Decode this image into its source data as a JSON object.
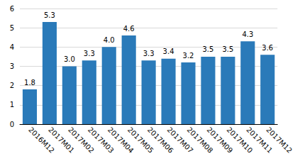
{
  "chart_data": {
    "type": "bar",
    "categories": [
      "2016M12",
      "2017M01",
      "2017M02",
      "2017M03",
      "2017M04",
      "2017M05",
      "2017M06",
      "2017M07",
      "2017M08",
      "2017M09",
      "2017M10",
      "2017M11",
      "2017M12"
    ],
    "values": [
      1.8,
      5.3,
      3.0,
      3.3,
      4.0,
      4.6,
      3.3,
      3.4,
      3.2,
      3.5,
      3.5,
      4.3,
      3.6
    ],
    "value_labels": [
      "1.8",
      "5.3",
      "3.0",
      "3.3",
      "4.0",
      "4.6",
      "3.3",
      "3.4",
      "3.2",
      "3.5",
      "3.5",
      "4.3",
      "3.6"
    ],
    "color": "#2a7ab9",
    "ylim": [
      0,
      6
    ],
    "yticks": [
      0,
      1,
      2,
      3,
      4,
      5,
      6
    ],
    "grid": true,
    "data_labels": true
  }
}
